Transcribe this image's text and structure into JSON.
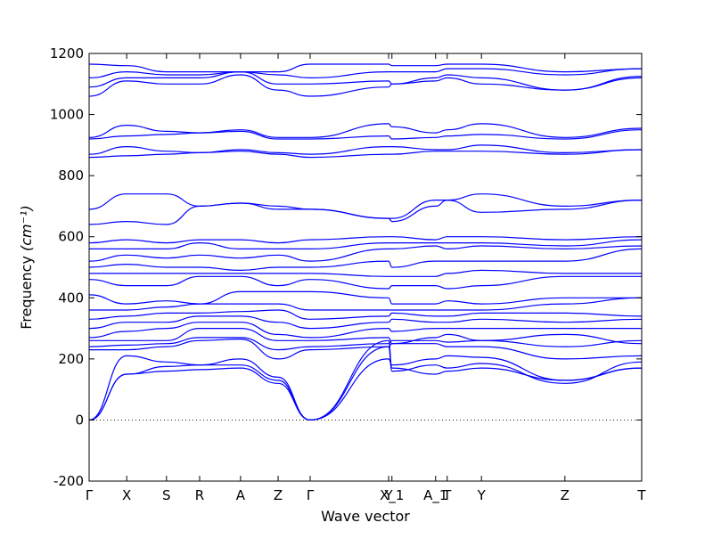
{
  "chart_data": {
    "type": "line",
    "title": "",
    "xlabel": "Wave vector",
    "ylabel": "Frequency",
    "ylabel_unit": "(cm⁻¹)",
    "ylim": [
      -200,
      1200
    ],
    "y_ticks": [
      -200,
      0,
      200,
      400,
      600,
      800,
      1000,
      1200
    ],
    "grid": false,
    "zero_line": true,
    "x_points": [
      {
        "label": "Γ",
        "pos": 0.0
      },
      {
        "label": "X",
        "pos": 0.068
      },
      {
        "label": "S",
        "pos": 0.14
      },
      {
        "label": "R",
        "pos": 0.2
      },
      {
        "label": "A",
        "pos": 0.274
      },
      {
        "label": "Z",
        "pos": 0.342
      },
      {
        "label": "Γ",
        "pos": 0.4
      },
      {
        "label": "Y",
        "pos": 0.542
      },
      {
        "label": "X_1",
        "pos": 0.548
      },
      {
        "label": "A_1",
        "pos": 0.627
      },
      {
        "label": "T",
        "pos": 0.648
      },
      {
        "label": "Y",
        "pos": 0.71
      },
      {
        "label": "Z",
        "pos": 0.861
      },
      {
        "label": "T",
        "pos": 1.0
      }
    ],
    "series": [
      {
        "values": [
          0,
          150,
          160,
          165,
          170,
          120,
          0,
          260,
          170,
          150,
          160,
          170,
          130,
          170
        ]
      },
      {
        "values": [
          0,
          150,
          175,
          180,
          180,
          130,
          0,
          240,
          160,
          180,
          170,
          185,
          120,
          190
        ]
      },
      {
        "values": [
          0,
          210,
          190,
          180,
          200,
          140,
          0,
          200,
          180,
          200,
          210,
          205,
          130,
          170
        ]
      },
      {
        "values": [
          230,
          230,
          240,
          260,
          265,
          200,
          230,
          240,
          250,
          250,
          240,
          240,
          200,
          210
        ]
      },
      {
        "values": [
          240,
          245,
          250,
          270,
          270,
          230,
          240,
          250,
          260,
          260,
          255,
          260,
          240,
          260
        ]
      },
      {
        "values": [
          260,
          260,
          260,
          300,
          300,
          260,
          260,
          270,
          250,
          270,
          280,
          260,
          280,
          250
        ]
      },
      {
        "values": [
          270,
          290,
          300,
          320,
          320,
          280,
          270,
          300,
          290,
          300,
          300,
          300,
          300,
          300
        ]
      },
      {
        "values": [
          300,
          320,
          320,
          340,
          340,
          320,
          300,
          320,
          330,
          320,
          320,
          330,
          320,
          330
        ]
      },
      {
        "values": [
          330,
          340,
          350,
          350,
          355,
          360,
          330,
          340,
          350,
          340,
          340,
          350,
          350,
          340
        ]
      },
      {
        "values": [
          360,
          360,
          370,
          380,
          380,
          380,
          360,
          360,
          360,
          360,
          360,
          360,
          380,
          400
        ]
      },
      {
        "values": [
          410,
          380,
          390,
          380,
          420,
          420,
          420,
          400,
          380,
          380,
          390,
          380,
          400,
          400
        ]
      },
      {
        "values": [
          460,
          440,
          440,
          470,
          470,
          440,
          460,
          430,
          440,
          440,
          430,
          440,
          470,
          470
        ]
      },
      {
        "values": [
          480,
          480,
          480,
          480,
          480,
          480,
          480,
          470,
          470,
          470,
          480,
          490,
          480,
          480
        ]
      },
      {
        "values": [
          500,
          510,
          500,
          500,
          490,
          500,
          500,
          520,
          500,
          520,
          520,
          520,
          520,
          560
        ]
      },
      {
        "values": [
          520,
          540,
          530,
          540,
          530,
          540,
          520,
          560,
          560,
          570,
          560,
          570,
          560,
          570
        ]
      },
      {
        "values": [
          560,
          560,
          560,
          580,
          560,
          560,
          560,
          580,
          580,
          580,
          580,
          580,
          570,
          590
        ]
      },
      {
        "values": [
          580,
          590,
          580,
          590,
          590,
          580,
          590,
          600,
          600,
          590,
          600,
          600,
          590,
          600
        ]
      },
      {
        "values": [
          640,
          650,
          640,
          700,
          710,
          690,
          690,
          660,
          650,
          700,
          720,
          680,
          690,
          720
        ]
      },
      {
        "values": [
          690,
          740,
          740,
          700,
          710,
          700,
          690,
          660,
          660,
          720,
          720,
          740,
          700,
          720
        ]
      },
      {
        "values": [
          860,
          865,
          870,
          875,
          880,
          870,
          860,
          870,
          870,
          880,
          880,
          880,
          870,
          885
        ]
      },
      {
        "values": [
          870,
          895,
          880,
          875,
          885,
          875,
          870,
          895,
          895,
          885,
          885,
          900,
          875,
          885
        ]
      },
      {
        "values": [
          920,
          930,
          935,
          940,
          945,
          920,
          920,
          930,
          920,
          925,
          930,
          935,
          920,
          950
        ]
      },
      {
        "values": [
          925,
          965,
          945,
          940,
          950,
          925,
          925,
          970,
          960,
          940,
          950,
          970,
          925,
          955
        ]
      },
      {
        "values": [
          1060,
          1110,
          1100,
          1100,
          1130,
          1080,
          1060,
          1090,
          1100,
          1110,
          1120,
          1100,
          1080,
          1120
        ]
      },
      {
        "values": [
          1090,
          1120,
          1120,
          1120,
          1140,
          1100,
          1100,
          1110,
          1100,
          1120,
          1130,
          1120,
          1080,
          1125
        ]
      },
      {
        "values": [
          1120,
          1140,
          1130,
          1130,
          1140,
          1130,
          1120,
          1140,
          1140,
          1140,
          1150,
          1150,
          1130,
          1150
        ]
      },
      {
        "values": [
          1165,
          1160,
          1140,
          1140,
          1140,
          1140,
          1165,
          1165,
          1160,
          1160,
          1165,
          1165,
          1140,
          1150
        ]
      }
    ]
  }
}
